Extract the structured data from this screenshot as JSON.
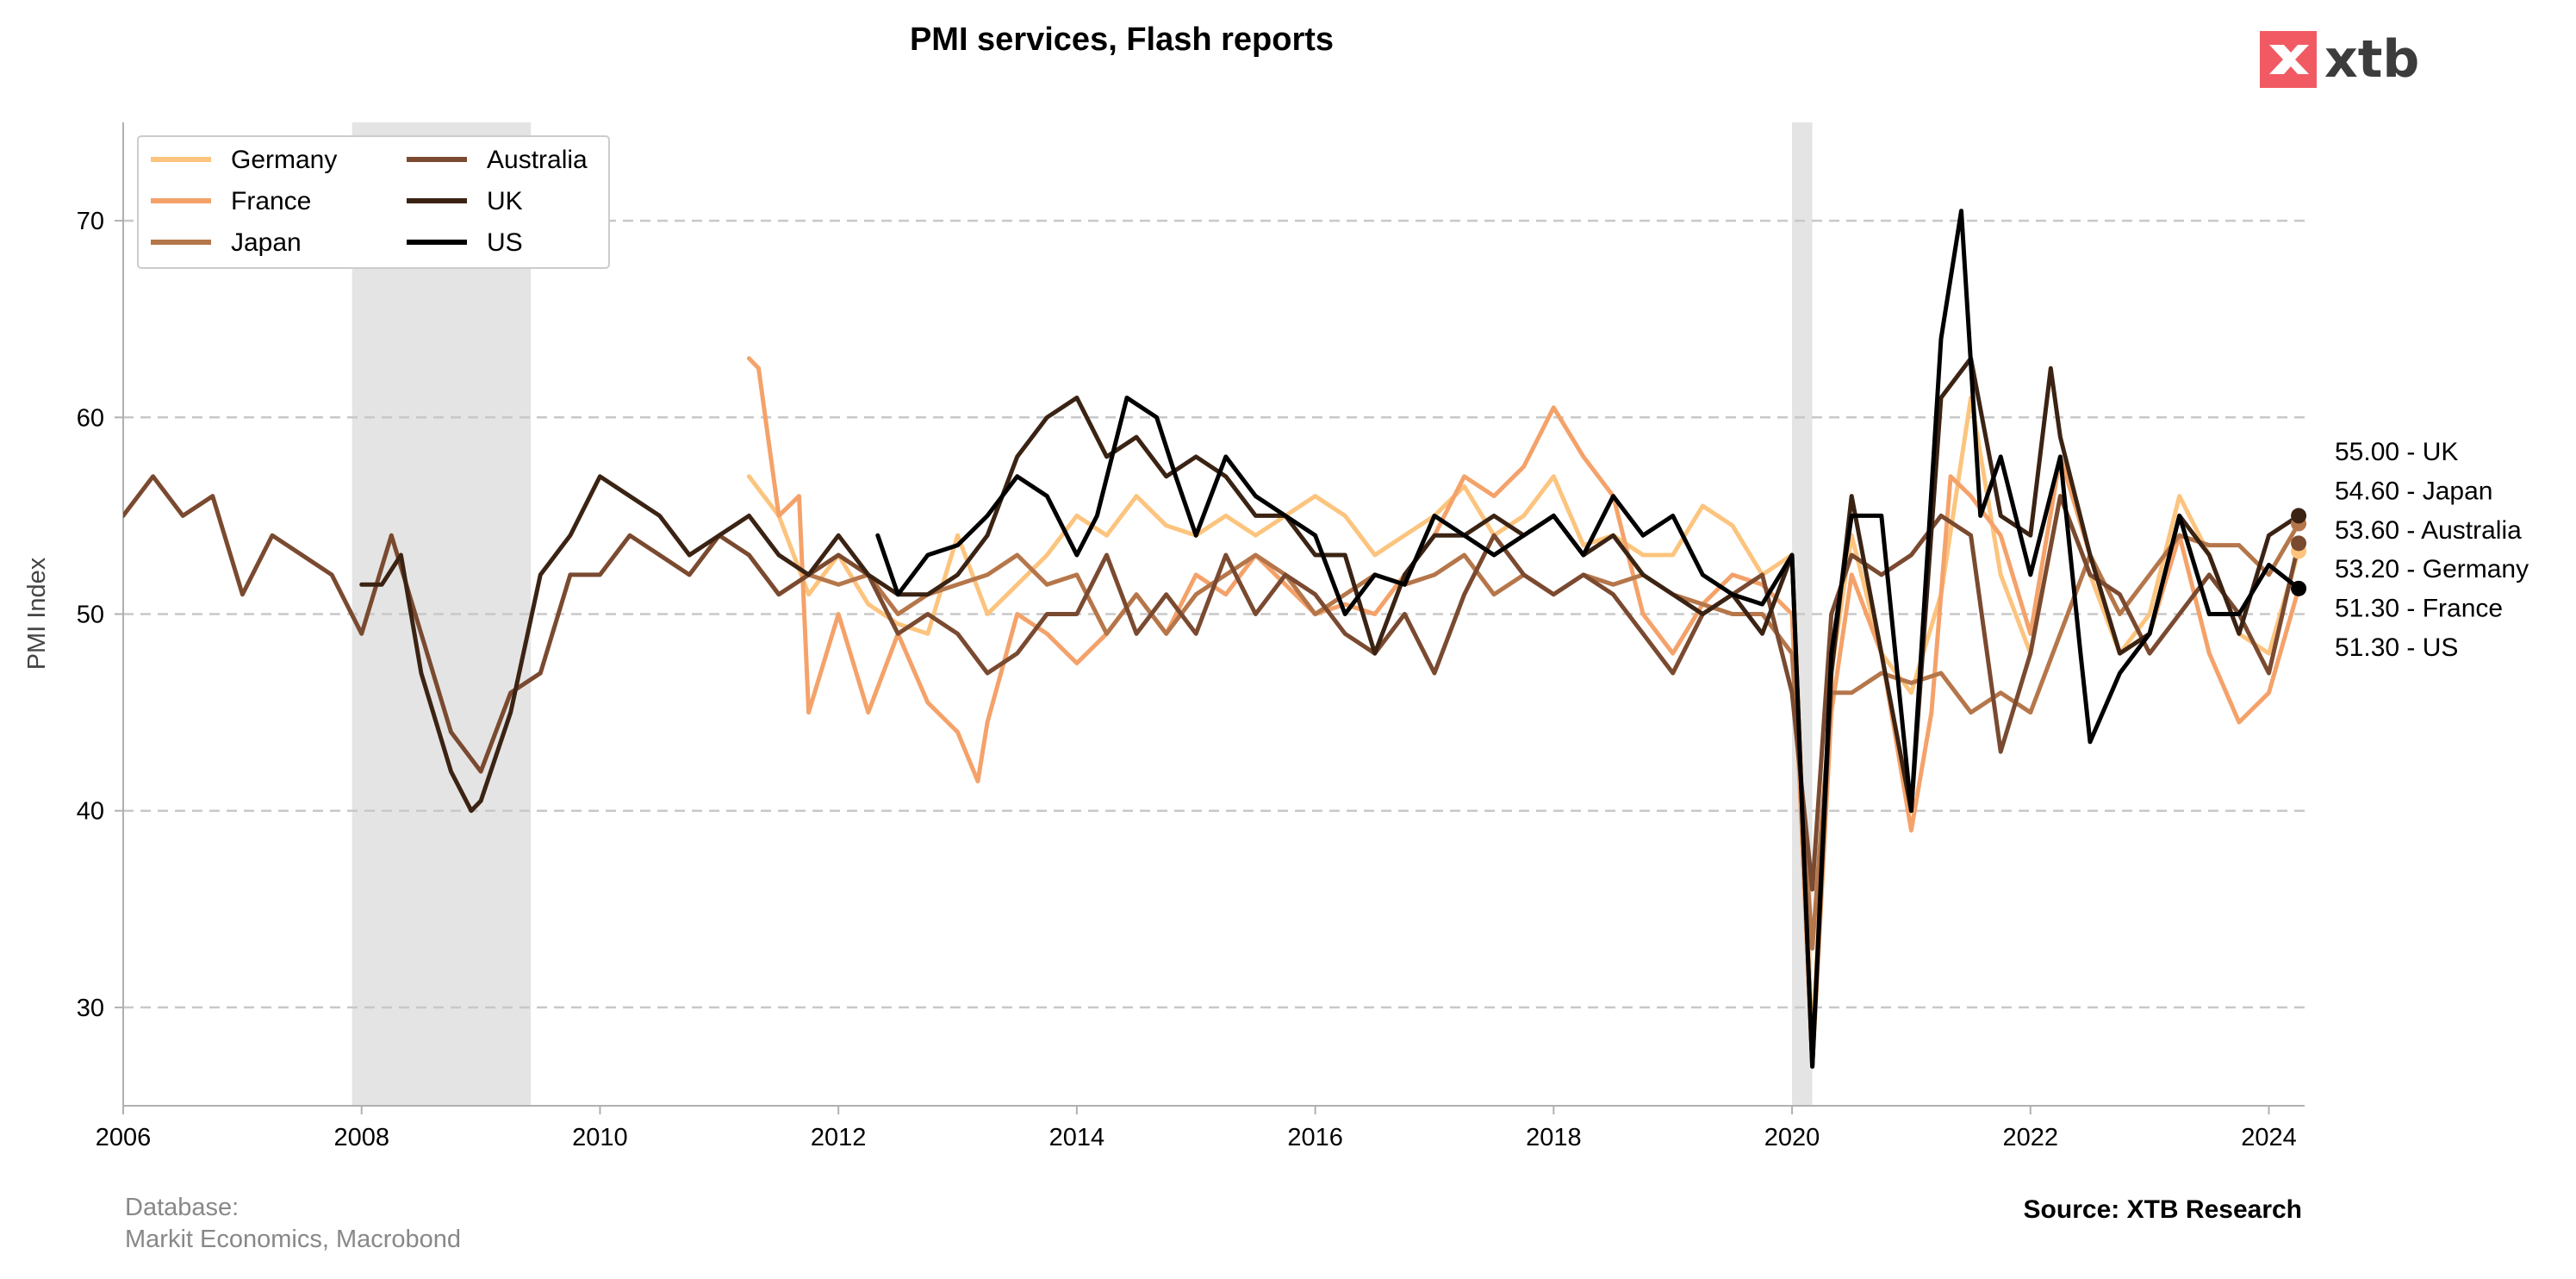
{
  "chart_data": {
    "type": "line",
    "title": "PMI services, Flash reports",
    "xlabel": "",
    "ylabel": "PMI Index",
    "xlim": [
      2006.0,
      2024.3
    ],
    "ylim": [
      25,
      75
    ],
    "xticks": [
      "2006",
      "2008",
      "2010",
      "2012",
      "2014",
      "2016",
      "2018",
      "2020",
      "2022",
      "2024"
    ],
    "yticks": [
      "30",
      "40",
      "50",
      "60",
      "70"
    ],
    "grid": "horizontal dashed",
    "legend_position": "top-left",
    "recession_shading": [
      [
        2007.92,
        2009.42
      ],
      [
        2020.0,
        2020.17
      ]
    ],
    "series": [
      {
        "name": "Germany",
        "color": "#fcc47e",
        "x": [
          2011.25,
          2011.5,
          2011.75,
          2012.0,
          2012.25,
          2012.5,
          2012.75,
          2013.0,
          2013.25,
          2013.5,
          2013.75,
          2014.0,
          2014.25,
          2014.5,
          2014.75,
          2015.0,
          2015.25,
          2015.5,
          2015.75,
          2016.0,
          2016.25,
          2016.5,
          2016.75,
          2017.0,
          2017.25,
          2017.5,
          2017.75,
          2018.0,
          2018.25,
          2018.5,
          2018.75,
          2019.0,
          2019.25,
          2019.5,
          2019.75,
          2020.0,
          2020.17,
          2020.33,
          2020.5,
          2020.75,
          2021.0,
          2021.25,
          2021.5,
          2021.75,
          2022.0,
          2022.25,
          2022.5,
          2022.75,
          2023.0,
          2023.25,
          2023.5,
          2023.75,
          2024.0,
          2024.25
        ],
        "values": [
          57,
          55,
          51,
          53,
          50.5,
          49.5,
          49,
          54,
          50,
          51.5,
          53,
          55,
          54,
          56,
          54.5,
          54,
          55,
          54,
          55,
          56,
          55,
          53,
          54,
          55,
          56.5,
          54,
          55,
          57,
          53.5,
          54,
          53,
          53,
          55.5,
          54.5,
          52,
          53,
          28,
          47,
          54,
          48,
          46,
          51,
          61,
          52,
          48,
          56,
          52,
          48,
          50,
          56,
          53,
          49,
          48,
          53.2
        ]
      },
      {
        "name": "France",
        "color": "#f4a26a",
        "x": [
          2011.25,
          2011.33,
          2011.5,
          2011.67,
          2011.75,
          2012.0,
          2012.25,
          2012.5,
          2012.75,
          2013.0,
          2013.17,
          2013.25,
          2013.5,
          2013.75,
          2014.0,
          2014.25,
          2014.5,
          2014.75,
          2015.0,
          2015.25,
          2015.5,
          2015.75,
          2016.0,
          2016.25,
          2016.5,
          2016.75,
          2017.0,
          2017.25,
          2017.5,
          2017.75,
          2018.0,
          2018.25,
          2018.5,
          2018.75,
          2019.0,
          2019.25,
          2019.5,
          2019.75,
          2020.0,
          2020.17,
          2020.33,
          2020.5,
          2020.75,
          2021.0,
          2021.17,
          2021.33,
          2021.5,
          2021.75,
          2022.0,
          2022.25,
          2022.5,
          2022.75,
          2023.0,
          2023.25,
          2023.5,
          2023.75,
          2024.0,
          2024.25
        ],
        "values": [
          63,
          62.5,
          55,
          56,
          45,
          50,
          45,
          49,
          45.5,
          44,
          41.5,
          44.5,
          50,
          49,
          47.5,
          49,
          51,
          49,
          52,
          51,
          53,
          51.5,
          50,
          50.5,
          50,
          52,
          54,
          57,
          56,
          57.5,
          60.5,
          58,
          56,
          50,
          48,
          50.5,
          52,
          51.5,
          50,
          27,
          45,
          52,
          48,
          39,
          45,
          57,
          56,
          54,
          49,
          58,
          53,
          48,
          49,
          54,
          48,
          44.5,
          46,
          51.3
        ]
      },
      {
        "name": "Japan",
        "color": "#b5764a",
        "x": [
          2011.25,
          2011.5,
          2011.75,
          2012.0,
          2012.25,
          2012.5,
          2012.75,
          2013.0,
          2013.25,
          2013.5,
          2013.75,
          2014.0,
          2014.25,
          2014.5,
          2014.75,
          2015.0,
          2015.25,
          2015.5,
          2015.75,
          2016.0,
          2016.25,
          2016.5,
          2016.75,
          2017.0,
          2017.25,
          2017.5,
          2017.75,
          2018.0,
          2018.25,
          2018.5,
          2018.75,
          2019.0,
          2019.25,
          2019.5,
          2019.75,
          2020.0,
          2020.17,
          2020.33,
          2020.5,
          2020.75,
          2021.0,
          2021.25,
          2021.5,
          2021.75,
          2022.0,
          2022.25,
          2022.5,
          2022.75,
          2023.0,
          2023.25,
          2023.5,
          2023.75,
          2024.0,
          2024.25
        ],
        "values": [
          53,
          51,
          52,
          51.5,
          52,
          50,
          51,
          51.5,
          52,
          53,
          51.5,
          52,
          49,
          51,
          49,
          51,
          52,
          53,
          52,
          50,
          51,
          52,
          51.5,
          52,
          53,
          51,
          52,
          51,
          52,
          51.5,
          52,
          51,
          50.5,
          50,
          50,
          48,
          33,
          46,
          46,
          47,
          46.5,
          47,
          45,
          46,
          45,
          49,
          53,
          50,
          52,
          54,
          53.5,
          53.5,
          52,
          54.6
        ]
      },
      {
        "name": "Australia",
        "color": "#7a4a30",
        "x": [
          2006.0,
          2006.25,
          2006.5,
          2006.75,
          2007.0,
          2007.25,
          2007.5,
          2007.75,
          2008.0,
          2008.25,
          2008.5,
          2008.75,
          2009.0,
          2009.25,
          2009.5,
          2009.75,
          2010.0,
          2010.25,
          2010.5,
          2010.75,
          2011.0,
          2011.25,
          2011.5,
          2011.75,
          2012.0,
          2012.25,
          2012.5,
          2012.75,
          2013.0,
          2013.25,
          2013.5,
          2013.75,
          2014.0,
          2014.25,
          2014.5,
          2014.75,
          2015.0,
          2015.25,
          2015.5,
          2015.75,
          2016.0,
          2016.25,
          2016.5,
          2016.75,
          2017.0,
          2017.25,
          2017.5,
          2017.75,
          2018.0,
          2018.25,
          2018.5,
          2018.75,
          2019.0,
          2019.25,
          2019.5,
          2019.75,
          2020.0,
          2020.17,
          2020.33,
          2020.5,
          2020.75,
          2021.0,
          2021.25,
          2021.5,
          2021.75,
          2022.0,
          2022.25,
          2022.5,
          2022.75,
          2023.0,
          2023.25,
          2023.5,
          2023.75,
          2024.0,
          2024.25
        ],
        "values": [
          55,
          57,
          55,
          56,
          51,
          54,
          53,
          52,
          49,
          54,
          49,
          44,
          42,
          46,
          47,
          52,
          52,
          54,
          53,
          52,
          54,
          53,
          51,
          52,
          53,
          52,
          49,
          50,
          49,
          47,
          48,
          50,
          50,
          53,
          49,
          51,
          49,
          53,
          50,
          52,
          51,
          49,
          48,
          50,
          47,
          51,
          54,
          52,
          51,
          52,
          51,
          49,
          47,
          50,
          51,
          52,
          46,
          36,
          50,
          53,
          52,
          53,
          55,
          54,
          43,
          48,
          56,
          52,
          51,
          48,
          50,
          52,
          50,
          47,
          53.6
        ]
      },
      {
        "name": "UK",
        "color": "#3b2314",
        "x": [
          2008.0,
          2008.17,
          2008.33,
          2008.5,
          2008.75,
          2008.92,
          2009.0,
          2009.25,
          2009.5,
          2009.75,
          2010.0,
          2010.25,
          2010.5,
          2010.75,
          2011.0,
          2011.25,
          2011.5,
          2011.75,
          2012.0,
          2012.25,
          2012.5,
          2012.75,
          2013.0,
          2013.25,
          2013.5,
          2013.75,
          2014.0,
          2014.25,
          2014.5,
          2014.75,
          2015.0,
          2015.25,
          2015.5,
          2015.75,
          2016.0,
          2016.25,
          2016.5,
          2016.75,
          2017.0,
          2017.25,
          2017.5,
          2017.75,
          2018.0,
          2018.25,
          2018.5,
          2018.75,
          2019.0,
          2019.25,
          2019.5,
          2019.75,
          2020.0,
          2020.17,
          2020.33,
          2020.5,
          2020.75,
          2021.0,
          2021.25,
          2021.5,
          2021.75,
          2022.0,
          2022.17,
          2022.25,
          2022.5,
          2022.75,
          2023.0,
          2023.25,
          2023.5,
          2023.75,
          2024.0,
          2024.25
        ],
        "values": [
          51.5,
          51.5,
          53,
          47,
          42,
          40,
          40.5,
          45,
          52,
          54,
          57,
          56,
          55,
          53,
          54,
          55,
          53,
          52,
          54,
          52,
          51,
          51,
          52,
          54,
          58,
          60,
          61,
          58,
          59,
          57,
          58,
          57,
          55,
          55,
          53,
          53,
          48,
          52,
          54,
          54,
          55,
          54,
          55,
          53,
          54,
          52,
          51,
          50,
          51,
          49,
          53,
          27,
          47,
          56,
          48,
          40,
          61,
          63,
          55,
          54,
          62.5,
          59,
          53,
          48,
          49,
          55,
          53,
          49,
          54,
          55.0
        ]
      },
      {
        "name": "US",
        "color": "#000000",
        "x": [
          2012.33,
          2012.5,
          2012.75,
          2013.0,
          2013.25,
          2013.5,
          2013.75,
          2014.0,
          2014.17,
          2014.42,
          2014.67,
          2014.83,
          2015.0,
          2015.25,
          2015.5,
          2015.75,
          2016.0,
          2016.25,
          2016.5,
          2016.75,
          2017.0,
          2017.25,
          2017.5,
          2017.75,
          2018.0,
          2018.25,
          2018.5,
          2018.75,
          2019.0,
          2019.25,
          2019.5,
          2019.75,
          2020.0,
          2020.17,
          2020.33,
          2020.5,
          2020.75,
          2021.0,
          2021.25,
          2021.42,
          2021.58,
          2021.75,
          2022.0,
          2022.25,
          2022.42,
          2022.5,
          2022.75,
          2023.0,
          2023.25,
          2023.5,
          2023.75,
          2024.0,
          2024.25
        ],
        "values": [
          54,
          51,
          53,
          53.5,
          55,
          57,
          56,
          53,
          55,
          61,
          60,
          57,
          54,
          58,
          56,
          55,
          54,
          50,
          52,
          51.5,
          55,
          54,
          53,
          54,
          55,
          53,
          56,
          54,
          55,
          52,
          51,
          50.5,
          53,
          27,
          48,
          55,
          55,
          40,
          64,
          70.5,
          55,
          58,
          52,
          58,
          48,
          43.5,
          47,
          49,
          55,
          50,
          50,
          52.5,
          51.3
        ]
      }
    ],
    "end_labels": [
      "55.00 - UK",
      "54.60 - Japan",
      "53.60 - Australia",
      "53.20 - Germany",
      "51.30 - France",
      "51.30 - US"
    ]
  },
  "footer": {
    "database_label": "Database:",
    "database_source": "Markit Economics, Macrobond",
    "source": "Source: XTB Research"
  },
  "logo": {
    "text": "xtb",
    "color": "#f15a63"
  }
}
